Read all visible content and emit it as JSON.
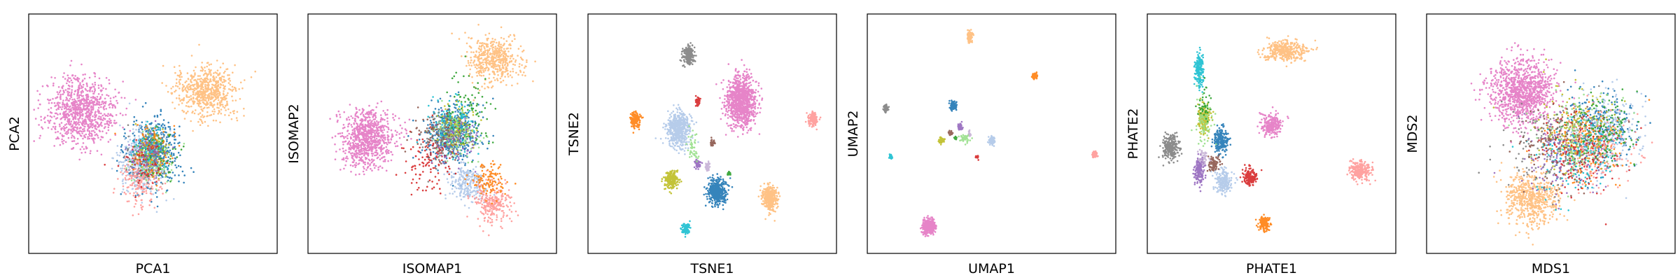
{
  "palette": {
    "blue": "#1f77b4",
    "light-blue": "#aec7e8",
    "orange": "#ff7f0e",
    "light-orange": "#ffbb78",
    "green": "#2ca02c",
    "light-green": "#98df8a",
    "red": "#d62728",
    "salmon": "#ff9896",
    "purple": "#9467bd",
    "light-purple": "#c5b0d5",
    "brown": "#8c564b",
    "pink": "#e377c2",
    "gray": "#7f7f7f",
    "olive": "#bcbd22",
    "cyan": "#17becf"
  },
  "chart_data": [
    {
      "type": "scatter",
      "xlabel": "PCA1",
      "ylabel": "PCA2",
      "xlim": [
        0,
        1
      ],
      "ylim": [
        0,
        1
      ],
      "grid": false,
      "ticks": false,
      "clusters": [
        {
          "color": "pink",
          "x": 0.2,
          "y": 0.6,
          "sx": 0.13,
          "sy": 0.13,
          "n": 900
        },
        {
          "color": "light-orange",
          "x": 0.72,
          "y": 0.68,
          "sx": 0.11,
          "sy": 0.1,
          "n": 650
        },
        {
          "color": "blue",
          "x": 0.5,
          "y": 0.42,
          "sx": 0.1,
          "sy": 0.14,
          "n": 500
        },
        {
          "color": "light-blue",
          "x": 0.45,
          "y": 0.38,
          "sx": 0.09,
          "sy": 0.13,
          "n": 300
        },
        {
          "color": "salmon",
          "x": 0.45,
          "y": 0.3,
          "sx": 0.08,
          "sy": 0.1,
          "n": 200
        },
        {
          "color": "light-green",
          "x": 0.5,
          "y": 0.4,
          "sx": 0.08,
          "sy": 0.1,
          "n": 120
        },
        {
          "color": "olive",
          "x": 0.5,
          "y": 0.42,
          "sx": 0.08,
          "sy": 0.1,
          "n": 100
        },
        {
          "color": "gray",
          "x": 0.48,
          "y": 0.4,
          "sx": 0.08,
          "sy": 0.1,
          "n": 100
        },
        {
          "color": "red",
          "x": 0.47,
          "y": 0.38,
          "sx": 0.08,
          "sy": 0.1,
          "n": 80
        },
        {
          "color": "green",
          "x": 0.52,
          "y": 0.42,
          "sx": 0.08,
          "sy": 0.1,
          "n": 60
        },
        {
          "color": "cyan",
          "x": 0.5,
          "y": 0.44,
          "sx": 0.08,
          "sy": 0.1,
          "n": 60
        },
        {
          "color": "orange",
          "x": 0.5,
          "y": 0.45,
          "sx": 0.08,
          "sy": 0.1,
          "n": 60
        },
        {
          "color": "purple",
          "x": 0.48,
          "y": 0.42,
          "sx": 0.08,
          "sy": 0.1,
          "n": 50
        }
      ]
    },
    {
      "type": "scatter",
      "xlabel": "ISOMAP1",
      "ylabel": "ISOMAP2",
      "xlim": [
        0,
        1
      ],
      "ylim": [
        0,
        1
      ],
      "grid": false,
      "ticks": false,
      "clusters": [
        {
          "color": "pink",
          "x": 0.23,
          "y": 0.48,
          "sx": 0.1,
          "sy": 0.11,
          "n": 850
        },
        {
          "color": "light-orange",
          "x": 0.76,
          "y": 0.82,
          "sx": 0.1,
          "sy": 0.09,
          "n": 500
        },
        {
          "color": "blue",
          "x": 0.58,
          "y": 0.5,
          "sx": 0.1,
          "sy": 0.12,
          "n": 500
        },
        {
          "color": "light-blue",
          "x": 0.65,
          "y": 0.28,
          "sx": 0.07,
          "sy": 0.07,
          "n": 250
        },
        {
          "color": "salmon",
          "x": 0.75,
          "y": 0.2,
          "sx": 0.07,
          "sy": 0.08,
          "n": 250
        },
        {
          "color": "orange",
          "x": 0.74,
          "y": 0.3,
          "sx": 0.07,
          "sy": 0.06,
          "n": 120
        },
        {
          "color": "red",
          "x": 0.48,
          "y": 0.38,
          "sx": 0.09,
          "sy": 0.12,
          "n": 120
        },
        {
          "color": "olive",
          "x": 0.6,
          "y": 0.52,
          "sx": 0.07,
          "sy": 0.08,
          "n": 150
        },
        {
          "color": "light-green",
          "x": 0.6,
          "y": 0.5,
          "sx": 0.09,
          "sy": 0.1,
          "n": 120
        },
        {
          "color": "cyan",
          "x": 0.58,
          "y": 0.55,
          "sx": 0.08,
          "sy": 0.1,
          "n": 90
        },
        {
          "color": "gray",
          "x": 0.55,
          "y": 0.48,
          "sx": 0.09,
          "sy": 0.1,
          "n": 90
        },
        {
          "color": "green",
          "x": 0.66,
          "y": 0.6,
          "sx": 0.1,
          "sy": 0.14,
          "n": 80
        },
        {
          "color": "brown",
          "x": 0.52,
          "y": 0.5,
          "sx": 0.09,
          "sy": 0.1,
          "n": 70
        },
        {
          "color": "purple",
          "x": 0.6,
          "y": 0.48,
          "sx": 0.08,
          "sy": 0.1,
          "n": 60
        }
      ]
    },
    {
      "type": "scatter",
      "xlabel": "TSNE1",
      "ylabel": "TSNE2",
      "xlim": [
        0,
        1
      ],
      "ylim": [
        0,
        1
      ],
      "grid": false,
      "ticks": false,
      "clusters": [
        {
          "color": "pink",
          "x": 0.62,
          "y": 0.64,
          "sx": 0.055,
          "sy": 0.1,
          "n": 1000
        },
        {
          "color": "light-blue",
          "x": 0.36,
          "y": 0.52,
          "sx": 0.045,
          "sy": 0.07,
          "n": 550
        },
        {
          "color": "blue",
          "x": 0.52,
          "y": 0.25,
          "sx": 0.035,
          "sy": 0.05,
          "n": 400
        },
        {
          "color": "light-orange",
          "x": 0.74,
          "y": 0.22,
          "sx": 0.03,
          "sy": 0.05,
          "n": 350
        },
        {
          "color": "olive",
          "x": 0.33,
          "y": 0.3,
          "sx": 0.025,
          "sy": 0.035,
          "n": 220
        },
        {
          "color": "gray",
          "x": 0.4,
          "y": 0.84,
          "sx": 0.023,
          "sy": 0.035,
          "n": 220
        },
        {
          "color": "orange",
          "x": 0.18,
          "y": 0.56,
          "sx": 0.018,
          "sy": 0.028,
          "n": 150
        },
        {
          "color": "salmon",
          "x": 0.92,
          "y": 0.56,
          "sx": 0.018,
          "sy": 0.028,
          "n": 150
        },
        {
          "color": "cyan",
          "x": 0.39,
          "y": 0.09,
          "sx": 0.014,
          "sy": 0.02,
          "n": 110
        },
        {
          "color": "purple",
          "x": 0.44,
          "y": 0.37,
          "sx": 0.01,
          "sy": 0.016,
          "n": 70
        },
        {
          "color": "red",
          "x": 0.44,
          "y": 0.64,
          "sx": 0.008,
          "sy": 0.014,
          "n": 50
        },
        {
          "color": "brown",
          "x": 0.5,
          "y": 0.46,
          "sx": 0.008,
          "sy": 0.013,
          "n": 40
        },
        {
          "color": "light-purple",
          "x": 0.48,
          "y": 0.36,
          "sx": 0.01,
          "sy": 0.015,
          "n": 40
        },
        {
          "color": "light-green",
          "x": 0.42,
          "y": 0.44,
          "sx": 0.02,
          "sy": 0.06,
          "n": 40
        },
        {
          "color": "green",
          "x": 0.57,
          "y": 0.33,
          "sx": 0.006,
          "sy": 0.01,
          "n": 20
        }
      ]
    },
    {
      "type": "scatter",
      "xlabel": "UMAP1",
      "ylabel": "UMAP2",
      "xlim": [
        0,
        1
      ],
      "ylim": [
        0,
        1
      ],
      "grid": false,
      "ticks": false,
      "clusters": [
        {
          "color": "pink",
          "x": 0.24,
          "y": 0.1,
          "sx": 0.022,
          "sy": 0.03,
          "n": 350
        },
        {
          "color": "light-orange",
          "x": 0.41,
          "y": 0.92,
          "sx": 0.01,
          "sy": 0.02,
          "n": 120
        },
        {
          "color": "orange",
          "x": 0.68,
          "y": 0.75,
          "sx": 0.008,
          "sy": 0.012,
          "n": 80
        },
        {
          "color": "gray",
          "x": 0.06,
          "y": 0.61,
          "sx": 0.008,
          "sy": 0.012,
          "n": 80
        },
        {
          "color": "salmon",
          "x": 0.93,
          "y": 0.41,
          "sx": 0.01,
          "sy": 0.01,
          "n": 80
        },
        {
          "color": "cyan",
          "x": 0.08,
          "y": 0.4,
          "sx": 0.006,
          "sy": 0.008,
          "n": 40
        },
        {
          "color": "blue",
          "x": 0.34,
          "y": 0.62,
          "sx": 0.012,
          "sy": 0.018,
          "n": 130
        },
        {
          "color": "light-blue",
          "x": 0.5,
          "y": 0.47,
          "sx": 0.012,
          "sy": 0.016,
          "n": 100
        },
        {
          "color": "olive",
          "x": 0.29,
          "y": 0.47,
          "sx": 0.01,
          "sy": 0.012,
          "n": 60
        },
        {
          "color": "purple",
          "x": 0.37,
          "y": 0.53,
          "sx": 0.008,
          "sy": 0.012,
          "n": 40
        },
        {
          "color": "light-green",
          "x": 0.39,
          "y": 0.48,
          "sx": 0.02,
          "sy": 0.015,
          "n": 40
        },
        {
          "color": "green",
          "x": 0.35,
          "y": 0.48,
          "sx": 0.006,
          "sy": 0.008,
          "n": 20
        },
        {
          "color": "red",
          "x": 0.44,
          "y": 0.4,
          "sx": 0.006,
          "sy": 0.008,
          "n": 20
        },
        {
          "color": "light-purple",
          "x": 0.41,
          "y": 0.5,
          "sx": 0.006,
          "sy": 0.01,
          "n": 20
        },
        {
          "color": "brown",
          "x": 0.33,
          "y": 0.5,
          "sx": 0.008,
          "sy": 0.01,
          "n": 20
        }
      ]
    },
    {
      "type": "scatter",
      "xlabel": "PHATE1",
      "ylabel": "PHATE2",
      "xlim": [
        0,
        1
      ],
      "ylim": [
        0,
        1
      ],
      "grid": false,
      "ticks": false,
      "clusters": [
        {
          "color": "light-orange",
          "x": 0.56,
          "y": 0.86,
          "sx": 0.08,
          "sy": 0.04,
          "n": 400
        },
        {
          "color": "salmon",
          "x": 0.87,
          "y": 0.34,
          "sx": 0.04,
          "sy": 0.04,
          "n": 250
        },
        {
          "color": "pink",
          "x": 0.5,
          "y": 0.54,
          "sx": 0.04,
          "sy": 0.045,
          "n": 230
        },
        {
          "color": "gray",
          "x": 0.08,
          "y": 0.44,
          "sx": 0.03,
          "sy": 0.05,
          "n": 260
        },
        {
          "color": "cyan",
          "x": 0.2,
          "y": 0.78,
          "sx": 0.015,
          "sy": 0.07,
          "n": 200
        },
        {
          "color": "olive",
          "x": 0.22,
          "y": 0.57,
          "sx": 0.02,
          "sy": 0.06,
          "n": 200
        },
        {
          "color": "blue",
          "x": 0.29,
          "y": 0.47,
          "sx": 0.025,
          "sy": 0.05,
          "n": 220
        },
        {
          "color": "light-blue",
          "x": 0.3,
          "y": 0.29,
          "sx": 0.03,
          "sy": 0.05,
          "n": 200
        },
        {
          "color": "purple",
          "x": 0.2,
          "y": 0.34,
          "sx": 0.02,
          "sy": 0.05,
          "n": 170
        },
        {
          "color": "brown",
          "x": 0.26,
          "y": 0.37,
          "sx": 0.02,
          "sy": 0.03,
          "n": 90
        },
        {
          "color": "red",
          "x": 0.41,
          "y": 0.31,
          "sx": 0.025,
          "sy": 0.03,
          "n": 160
        },
        {
          "color": "orange",
          "x": 0.47,
          "y": 0.11,
          "sx": 0.02,
          "sy": 0.03,
          "n": 170
        },
        {
          "color": "light-green",
          "x": 0.22,
          "y": 0.55,
          "sx": 0.03,
          "sy": 0.1,
          "n": 70
        },
        {
          "color": "green",
          "x": 0.22,
          "y": 0.62,
          "sx": 0.02,
          "sy": 0.08,
          "n": 40
        },
        {
          "color": "light-purple",
          "x": 0.22,
          "y": 0.4,
          "sx": 0.02,
          "sy": 0.04,
          "n": 40
        }
      ]
    },
    {
      "type": "scatter",
      "xlabel": "MDS1",
      "ylabel": "MDS2",
      "xlim": [
        0,
        1
      ],
      "ylim": [
        0,
        1
      ],
      "grid": false,
      "ticks": false,
      "clusters": [
        {
          "color": "pink",
          "x": 0.38,
          "y": 0.68,
          "sx": 0.12,
          "sy": 0.13,
          "n": 1100
        },
        {
          "color": "light-orange",
          "x": 0.42,
          "y": 0.22,
          "sx": 0.1,
          "sy": 0.1,
          "n": 600
        },
        {
          "color": "blue",
          "x": 0.7,
          "y": 0.52,
          "sx": 0.14,
          "sy": 0.16,
          "n": 280
        },
        {
          "color": "light-blue",
          "x": 0.72,
          "y": 0.5,
          "sx": 0.13,
          "sy": 0.16,
          "n": 250
        },
        {
          "color": "orange",
          "x": 0.65,
          "y": 0.45,
          "sx": 0.14,
          "sy": 0.16,
          "n": 180
        },
        {
          "color": "salmon",
          "x": 0.7,
          "y": 0.42,
          "sx": 0.14,
          "sy": 0.16,
          "n": 180
        },
        {
          "color": "olive",
          "x": 0.6,
          "y": 0.5,
          "sx": 0.16,
          "sy": 0.16,
          "n": 160
        },
        {
          "color": "green",
          "x": 0.7,
          "y": 0.52,
          "sx": 0.14,
          "sy": 0.16,
          "n": 150
        },
        {
          "color": "cyan",
          "x": 0.6,
          "y": 0.4,
          "sx": 0.16,
          "sy": 0.16,
          "n": 150
        },
        {
          "color": "gray",
          "x": 0.5,
          "y": 0.45,
          "sx": 0.18,
          "sy": 0.18,
          "n": 160
        },
        {
          "color": "red",
          "x": 0.62,
          "y": 0.42,
          "sx": 0.15,
          "sy": 0.16,
          "n": 140
        },
        {
          "color": "purple",
          "x": 0.55,
          "y": 0.4,
          "sx": 0.16,
          "sy": 0.16,
          "n": 130
        },
        {
          "color": "brown",
          "x": 0.55,
          "y": 0.45,
          "sx": 0.18,
          "sy": 0.18,
          "n": 120
        },
        {
          "color": "light-green",
          "x": 0.6,
          "y": 0.5,
          "sx": 0.16,
          "sy": 0.16,
          "n": 110
        }
      ]
    }
  ]
}
